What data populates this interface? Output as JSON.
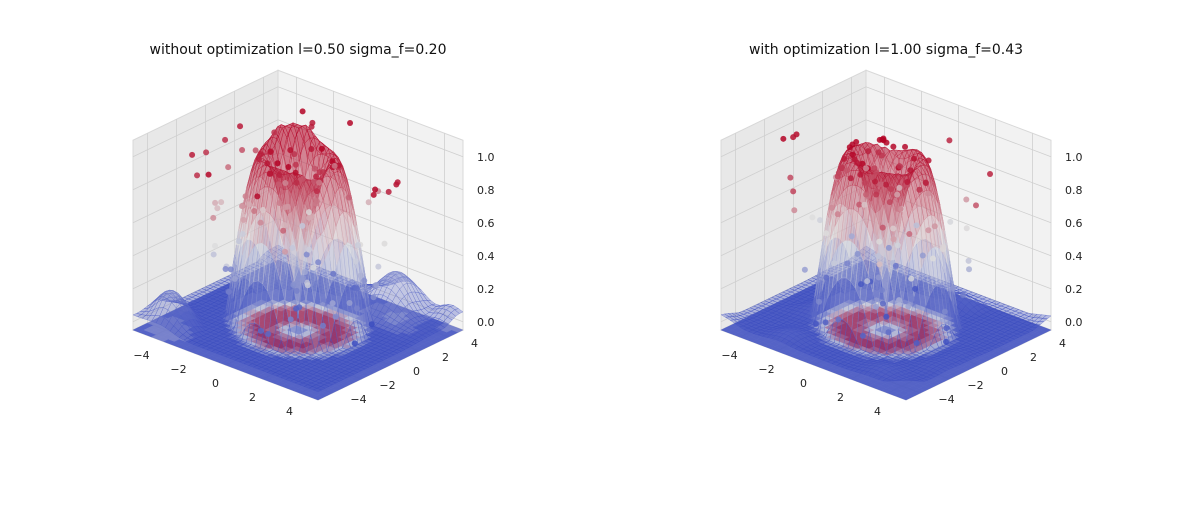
{
  "chart_data": [
    {
      "type": "surface3d",
      "title": "without optimization l=0.50 sigma_f=0.20",
      "xlabel": "",
      "ylabel": "",
      "zlabel": "",
      "xticks": [
        -4,
        -2,
        0,
        2,
        4
      ],
      "yticks": [
        -4,
        -2,
        0,
        2,
        4
      ],
      "zticks": [
        "0.0",
        "0.2",
        "0.4",
        "0.6",
        "0.8",
        "1.0"
      ],
      "xlim": [
        -5,
        5
      ],
      "ylim": [
        -5,
        5
      ],
      "zlim": [
        -0.05,
        1.1
      ],
      "surface": "sin(sqrt(x^2+y^2)) GP mean, rough fit",
      "colormap": "coolwarm",
      "grid": true,
      "noise": 0.22
    },
    {
      "type": "surface3d",
      "title": "with optimization l=1.00 sigma_f=0.43",
      "xlabel": "",
      "ylabel": "",
      "zlabel": "",
      "xticks": [
        -4,
        -2,
        0,
        2,
        4
      ],
      "yticks": [
        -4,
        -2,
        0,
        2,
        4
      ],
      "zticks": [
        "0.0",
        "0.2",
        "0.4",
        "0.6",
        "0.8",
        "1.0"
      ],
      "xlim": [
        -5,
        5
      ],
      "ylim": [
        -5,
        5
      ],
      "zlim": [
        -0.05,
        1.1
      ],
      "surface": "sin(sqrt(x^2+y^2)) GP mean, smooth fit",
      "colormap": "coolwarm",
      "grid": true,
      "noise": 0.05
    }
  ],
  "colors": {
    "low": "#3b4cc0",
    "mid": "#dddddd",
    "high": "#b40426",
    "pane": "#f2f2f2",
    "grid": "#cfcfcf"
  }
}
